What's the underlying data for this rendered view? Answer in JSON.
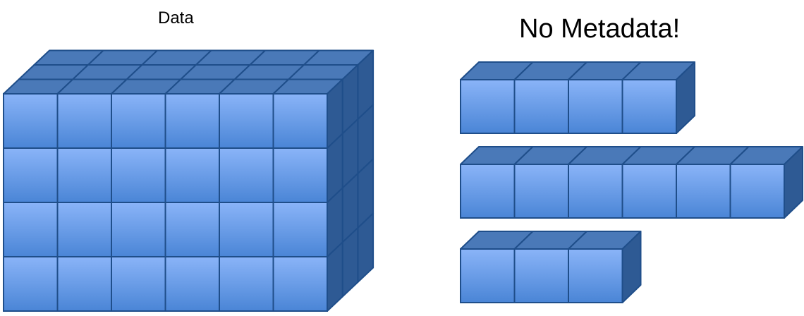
{
  "labels": {
    "data_title": "Data",
    "no_metadata_title": "No Metadata!"
  },
  "colors": {
    "front_top": "#8ab4f8",
    "front_bottom": "#4a85d6",
    "top_face": "#4a79b8",
    "side_face": "#2e5a94",
    "stroke": "#1f4e8a"
  },
  "diagram": {
    "data_block": {
      "columns": 6,
      "rows": 4,
      "layers": 3
    },
    "no_metadata_rows": [
      {
        "cubes": 4
      },
      {
        "cubes": 6
      },
      {
        "cubes": 3
      }
    ]
  }
}
